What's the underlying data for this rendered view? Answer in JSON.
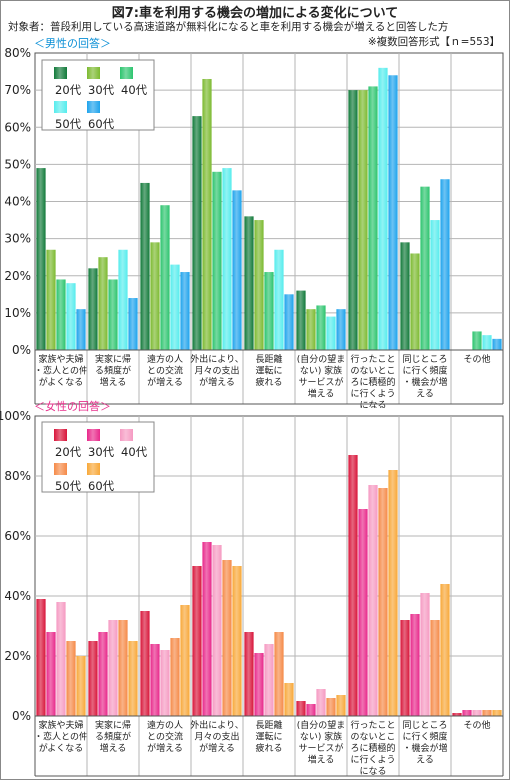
{
  "title": "図7:車を利用する機会の増加による変化について",
  "subtitle": "対象者：普段利用している高速道路が無料化になると車を利用する機会が増えると回答した方",
  "note": "※複数回答形式【ｎ=553】",
  "chart_data": [
    {
      "type": "bar",
      "section_label": "＜男性の回答＞",
      "section_color": "#0a8fd6",
      "categories": [
        [
          "家族や夫婦",
          "・恋人との仲",
          "がよくなる"
        ],
        [
          "実家に帰",
          "る頻度が",
          "増える"
        ],
        [
          "遠方の人",
          "との交流",
          "が増える"
        ],
        [
          "外出により、",
          "月々の支出",
          "が増える"
        ],
        [
          "長距離",
          "運転に",
          "疲れる"
        ],
        [
          "(自分の望ま",
          "ない) 家族",
          "サービスが",
          "増える"
        ],
        [
          "行ったこと",
          "のないとこ",
          "ろに積極的",
          "に行くよう",
          "になる"
        ],
        [
          "同じところ",
          "に行く頻度",
          "・機会が増",
          "える"
        ],
        [
          "その他"
        ]
      ],
      "y_ticks": [
        "0%",
        "10%",
        "20%",
        "30%",
        "40%",
        "50%",
        "60%",
        "70%",
        "80%"
      ],
      "ylim": [
        0,
        80
      ],
      "series": [
        {
          "name": "20代",
          "color": "#127a3a",
          "values": [
            49,
            22,
            45,
            63,
            36,
            16,
            70,
            29,
            0
          ]
        },
        {
          "name": "30代",
          "color": "#7cba30",
          "values": [
            27,
            25,
            29,
            73,
            35,
            11,
            70,
            26,
            0
          ]
        },
        {
          "name": "40代",
          "color": "#2cc46e",
          "values": [
            19,
            19,
            39,
            48,
            21,
            12,
            71,
            44,
            5
          ]
        },
        {
          "name": "50代",
          "color": "#56eced",
          "values": [
            18,
            27,
            23,
            49,
            27,
            9,
            76,
            35,
            4
          ]
        },
        {
          "name": "60代",
          "color": "#1ea3ec",
          "values": [
            11,
            14,
            21,
            43,
            15,
            11,
            74,
            46,
            3
          ]
        }
      ]
    },
    {
      "type": "bar",
      "section_label": "＜女性の回答＞",
      "section_color": "#e8308c",
      "categories": [
        [
          "家族や夫婦",
          "・恋人との仲",
          "がよくなる"
        ],
        [
          "実家に帰",
          "る頻度が",
          "増える"
        ],
        [
          "遠方の人",
          "との交流",
          "が増える"
        ],
        [
          "外出により、",
          "月々の支出",
          "が増える"
        ],
        [
          "長距離",
          "運転に",
          "疲れる"
        ],
        [
          "(自分の望ま",
          "ない) 家族",
          "サービスが",
          "増える"
        ],
        [
          "行ったこと",
          "のないとこ",
          "ろに積極的",
          "に行くよう",
          "になる"
        ],
        [
          "同じところ",
          "に行く頻度",
          "・機会が増",
          "える"
        ],
        [
          "その他"
        ]
      ],
      "y_ticks": [
        "0%",
        "20%",
        "40%",
        "60%",
        "80%",
        "100%"
      ],
      "ylim": [
        0,
        100
      ],
      "series": [
        {
          "name": "20代",
          "color": "#d8153a",
          "values": [
            39,
            25,
            35,
            50,
            28,
            5,
            87,
            32,
            1
          ]
        },
        {
          "name": "30代",
          "color": "#e8288a",
          "values": [
            28,
            28,
            24,
            58,
            21,
            4,
            69,
            34,
            2
          ]
        },
        {
          "name": "40代",
          "color": "#f59ac2",
          "values": [
            38,
            32,
            22,
            57,
            24,
            9,
            77,
            41,
            2
          ]
        },
        {
          "name": "50代",
          "color": "#f58a48",
          "values": [
            25,
            32,
            26,
            52,
            28,
            6,
            76,
            32,
            2
          ]
        },
        {
          "name": "60代",
          "color": "#f8a838",
          "values": [
            20,
            25,
            37,
            50,
            11,
            7,
            82,
            44,
            2
          ]
        }
      ]
    }
  ]
}
